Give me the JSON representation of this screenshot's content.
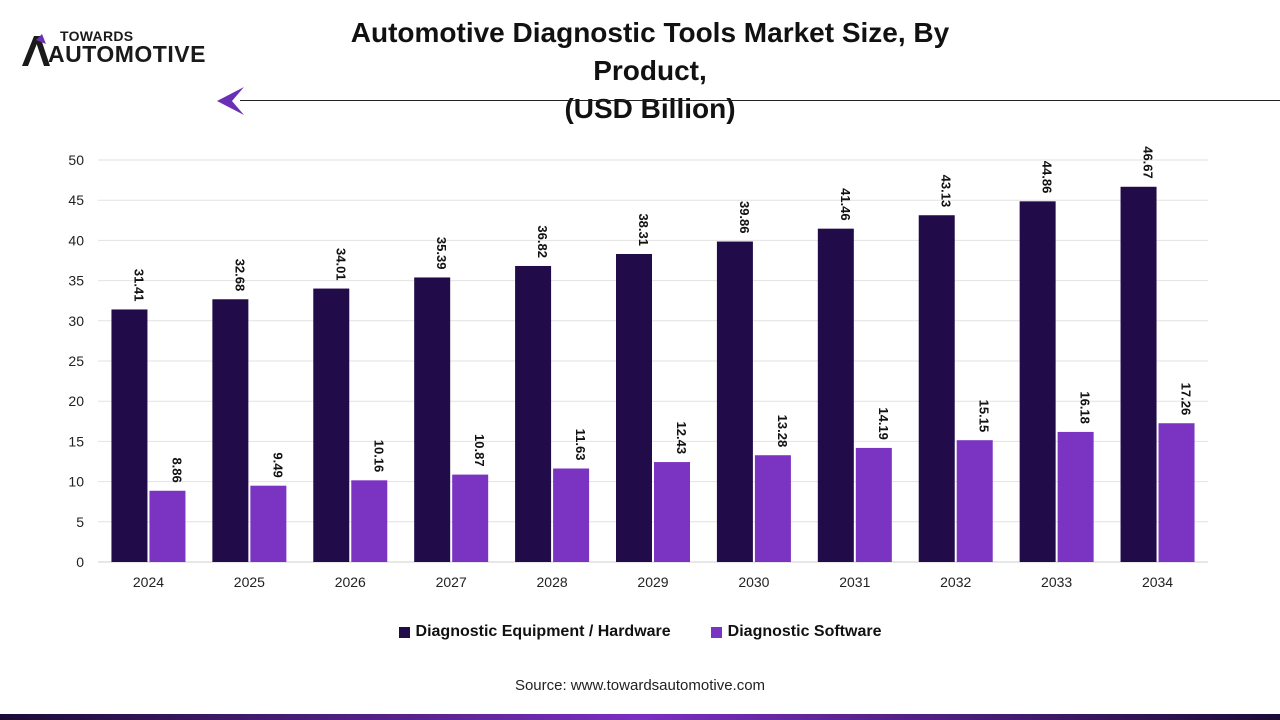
{
  "brand": {
    "top": "TOWARDS",
    "bottom": "AUTOMOTIVE",
    "colors": {
      "dark": "#1a1a1a",
      "accent": "#6a2fb5"
    }
  },
  "title": {
    "line1": "Automotive Diagnostic Tools Market Size, By Product,",
    "line2": "(USD Billion)"
  },
  "source": "Source: www.towardsautomotive.com",
  "colors": {
    "hardware": "#220b49",
    "software": "#7b33c2",
    "grid": "#e2e2e2"
  },
  "chart_data": {
    "type": "bar",
    "categories": [
      "2024",
      "2025",
      "2026",
      "2027",
      "2028",
      "2029",
      "2030",
      "2031",
      "2032",
      "2033",
      "2034"
    ],
    "series": [
      {
        "name": "Diagnostic Equipment / Hardware",
        "values": [
          31.41,
          32.68,
          34.01,
          35.39,
          36.82,
          38.31,
          39.86,
          41.46,
          43.13,
          44.86,
          46.67
        ]
      },
      {
        "name": "Diagnostic Software",
        "values": [
          8.86,
          9.49,
          10.16,
          10.87,
          11.63,
          12.43,
          13.28,
          14.19,
          15.15,
          16.18,
          17.26
        ]
      }
    ],
    "value_labels": [
      [
        "31.41",
        "32.68",
        "34.01",
        "35.39",
        "36.82",
        "38.31",
        "39.86",
        "41.46",
        "43.13",
        "44.86",
        "46.67"
      ],
      [
        "8.86",
        "9.49",
        "10.16",
        "10.87",
        "11.63",
        "12.43",
        "13.28",
        "14.19",
        "15.15",
        "16.18",
        "17.26"
      ]
    ],
    "yticks": [
      "0",
      "5",
      "10",
      "15",
      "20",
      "25",
      "30",
      "35",
      "40",
      "45",
      "50"
    ],
    "ylim": [
      0,
      50
    ],
    "grid": true,
    "legend_position": "bottom"
  }
}
